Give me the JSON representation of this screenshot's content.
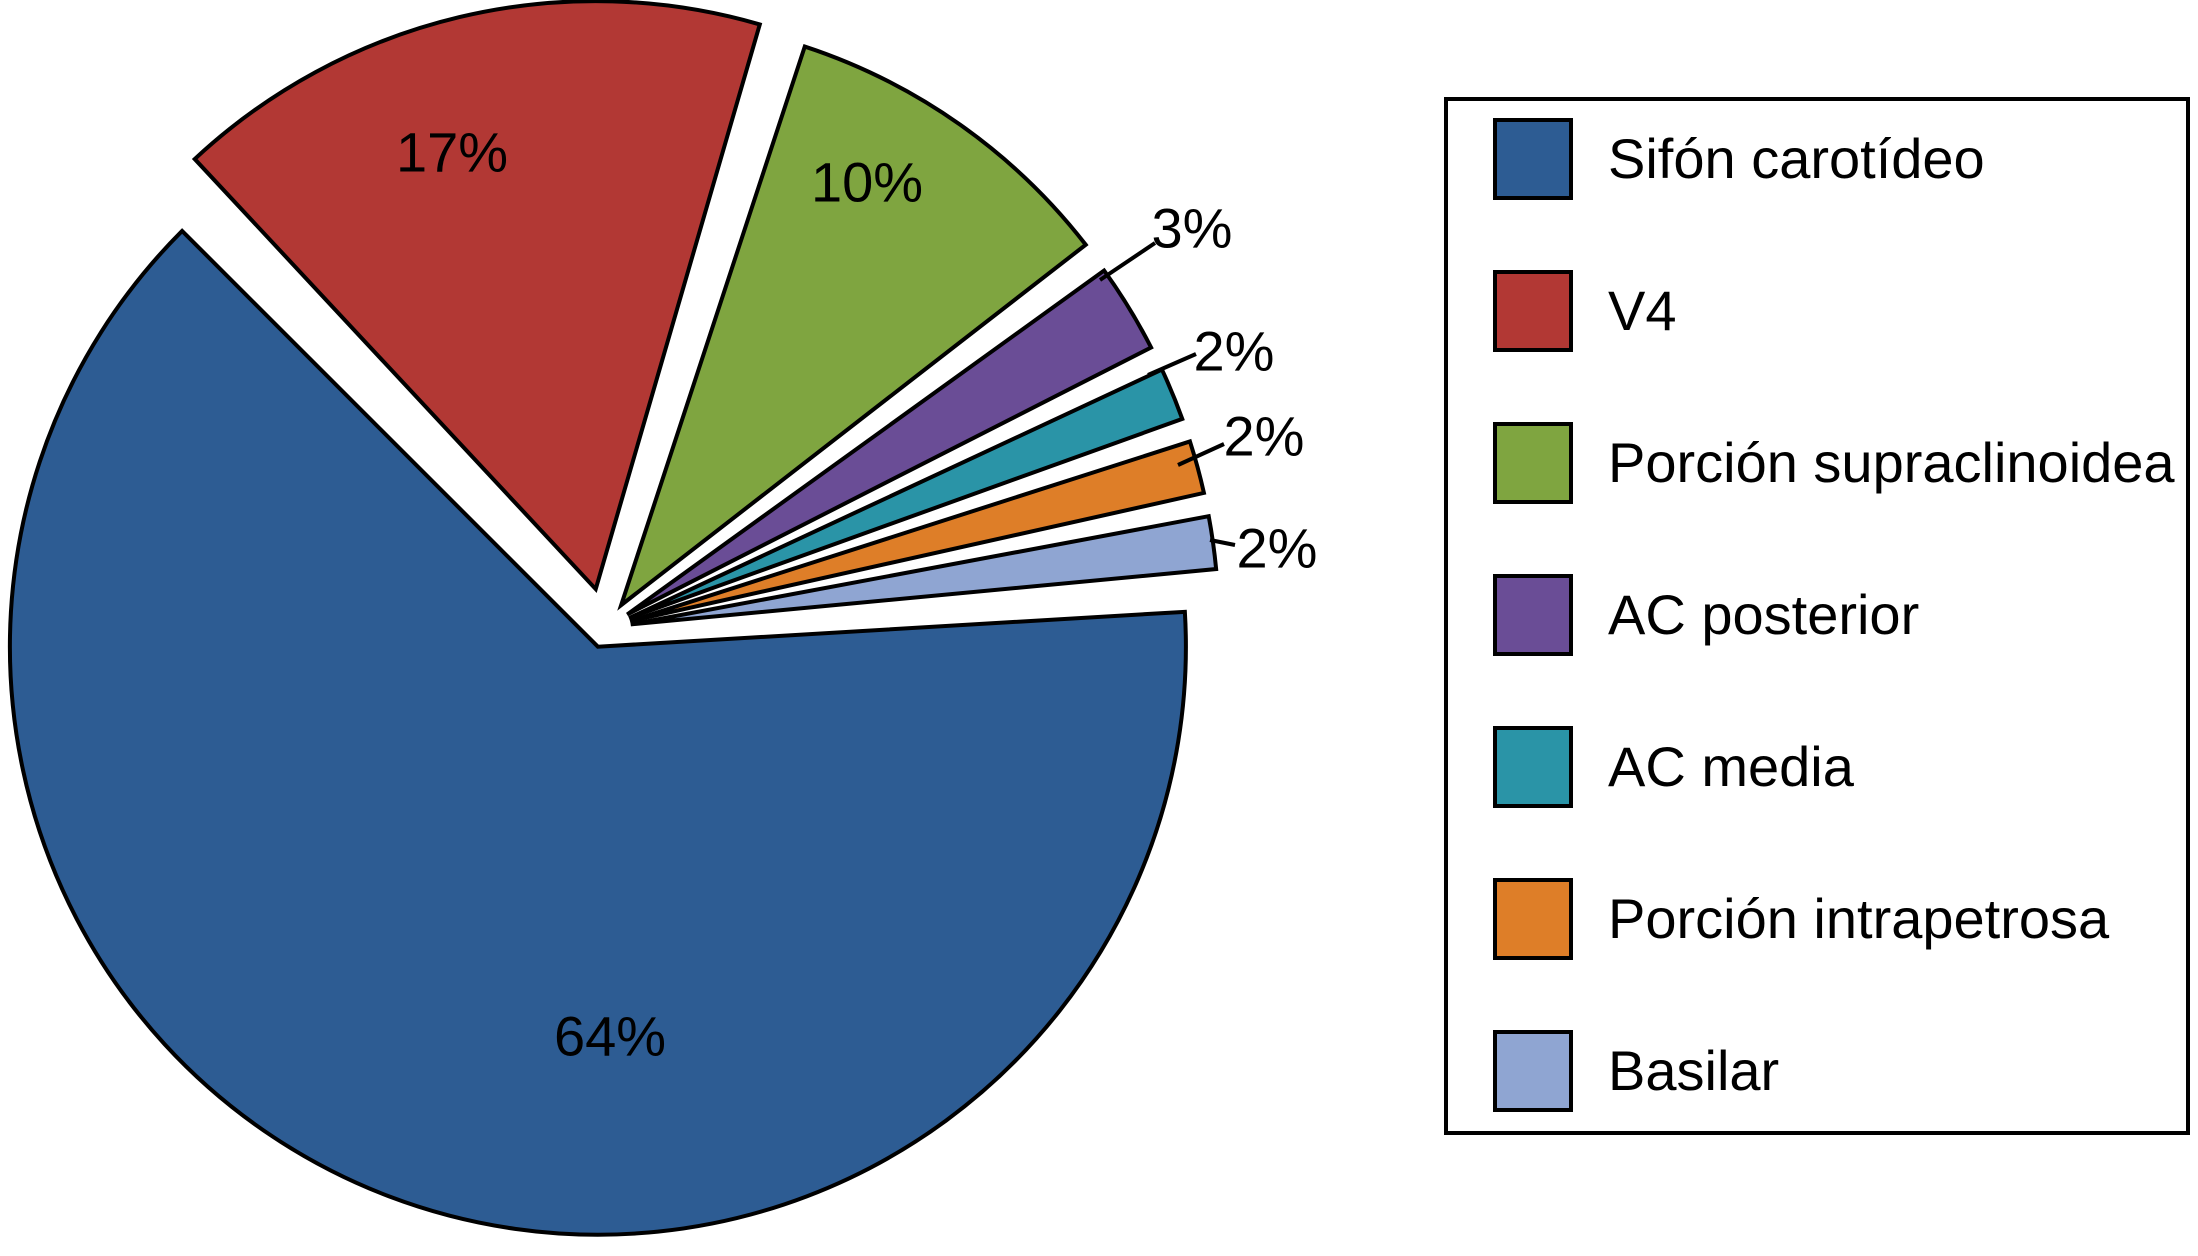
{
  "figure": {
    "background_color": "#ffffff",
    "outline_color": "#000000"
  },
  "chart_data": {
    "type": "pie",
    "title": "",
    "exploded": true,
    "grid": false,
    "legend_position": "right",
    "direction": "clockwise",
    "start_angle_deg": 134,
    "units": "percent",
    "slices": [
      {
        "label": "Sifón carotídeo",
        "value": 64,
        "pct_label": "64%",
        "color": "#2d5c93"
      },
      {
        "label": "V4",
        "value": 17,
        "pct_label": "17%",
        "color": "#b23834"
      },
      {
        "label": "Porción supraclinoidea",
        "value": 10,
        "pct_label": "10%",
        "color": "#7fa540"
      },
      {
        "label": "AC posterior",
        "value": 3,
        "pct_label": "3%",
        "color": "#6a4d96"
      },
      {
        "label": "AC media",
        "value": 2,
        "pct_label": "2%",
        "color": "#2a94a7"
      },
      {
        "label": "Porción intrapetrosa",
        "value": 2,
        "pct_label": "2%",
        "color": "#de7e28"
      },
      {
        "label": "Basilar",
        "value": 2,
        "pct_label": "2%",
        "color": "#8fa5d2"
      }
    ]
  }
}
